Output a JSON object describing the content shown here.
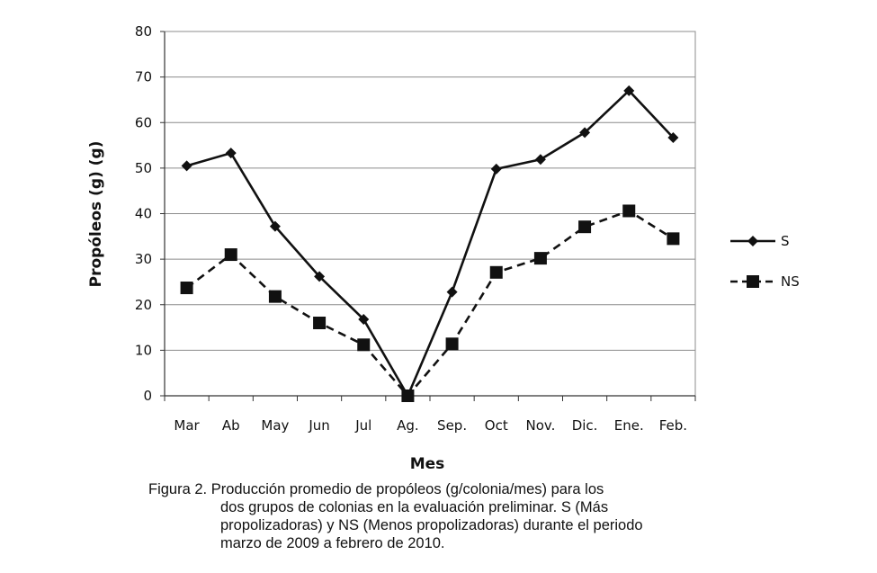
{
  "chart_data": {
    "type": "line",
    "ylabel": "Propóleos (g) (g)",
    "xlabel": "Mes",
    "categories": [
      "Mar",
      "Ab",
      "May",
      "Jun",
      "Jul",
      "Ag.",
      "Sep.",
      "Oct",
      "Nov.",
      "Dic.",
      "Ene.",
      "Feb."
    ],
    "ylim": [
      0,
      80
    ],
    "yticks": [
      "0",
      "10",
      "20",
      "30",
      "40",
      "50",
      "60",
      "70",
      "80"
    ],
    "grid": true,
    "legend_position": "right",
    "series": [
      {
        "name": "S",
        "style": "solid",
        "marker": "diamond",
        "color": "#111111",
        "values": [
          50.5,
          53.3,
          37.2,
          26.2,
          16.8,
          0,
          22.8,
          49.8,
          51.9,
          57.8,
          67.0,
          56.7
        ]
      },
      {
        "name": "NS",
        "style": "dashed",
        "marker": "square",
        "color": "#111111",
        "values": [
          23.7,
          31.0,
          21.8,
          16.0,
          11.2,
          0,
          11.4,
          27.1,
          30.2,
          37.1,
          40.6,
          34.5
        ]
      }
    ]
  },
  "caption": {
    "first": "Figura 2. Producción promedio de propóleos (g/colonia/mes) para los",
    "lines": [
      "dos grupos de colonias en la evaluación preliminar. S (Más",
      "propolizadoras) y NS (Menos propolizadoras) durante el periodo",
      "marzo de 2009 a febrero de 2010."
    ]
  }
}
